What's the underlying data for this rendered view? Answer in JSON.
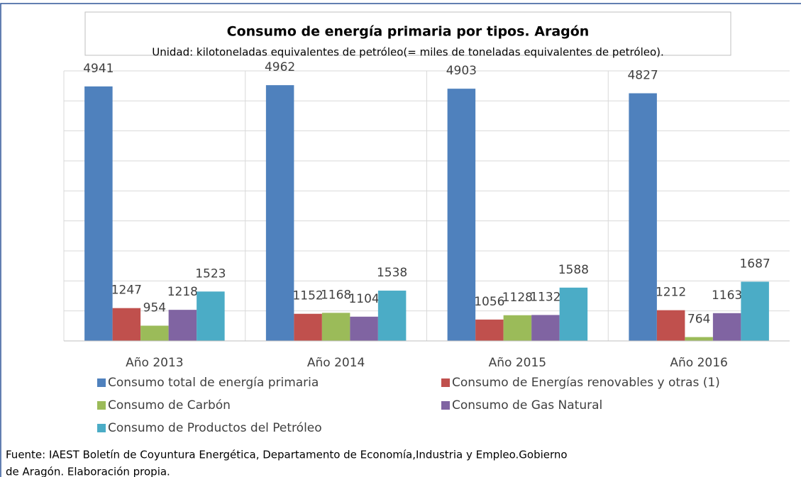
{
  "chart_data": {
    "type": "bar",
    "title": "Consumo de energía primaria por tipos. Aragón",
    "subtitle": "Unidad: kilotoneladas equivalentes de petróleo(= miles de toneladas equivalentes de petróleo).",
    "categories": [
      "Año 2013",
      "Año 2014",
      "Año 2015",
      "Año 2016"
    ],
    "series": [
      {
        "name": "Consumo total de energía primaria",
        "color": "#4f81bd",
        "values": [
          4941,
          4962,
          4903,
          4827
        ]
      },
      {
        "name": "Consumo de Energías renovables y otras (1)",
        "color": "#c0504d",
        "values": [
          1247,
          1152,
          1056,
          1212
        ]
      },
      {
        "name": "Consumo de Carbón",
        "color": "#9bbb59",
        "values": [
          954,
          1168,
          1128,
          764
        ]
      },
      {
        "name": "Consumo de Gas Natural",
        "color": "#8064a2",
        "values": [
          1218,
          1104,
          1132,
          1163
        ]
      },
      {
        "name": "Consumo de Productos del Petróleo",
        "color": "#4bacc6",
        "values": [
          1523,
          1538,
          1588,
          1687
        ]
      }
    ],
    "ylim": [
      700,
      5200
    ],
    "yticks": [
      700,
      1200,
      1700,
      2200,
      2700,
      3200,
      3700,
      4200,
      4700,
      5200
    ],
    "grid": true,
    "source": [
      "Fuente: IAEST Boletín de Coyuntura Energética, Departamento de Economía,Industria y Empleo.Gobierno",
      "de Aragón. Elaboración propia."
    ]
  }
}
